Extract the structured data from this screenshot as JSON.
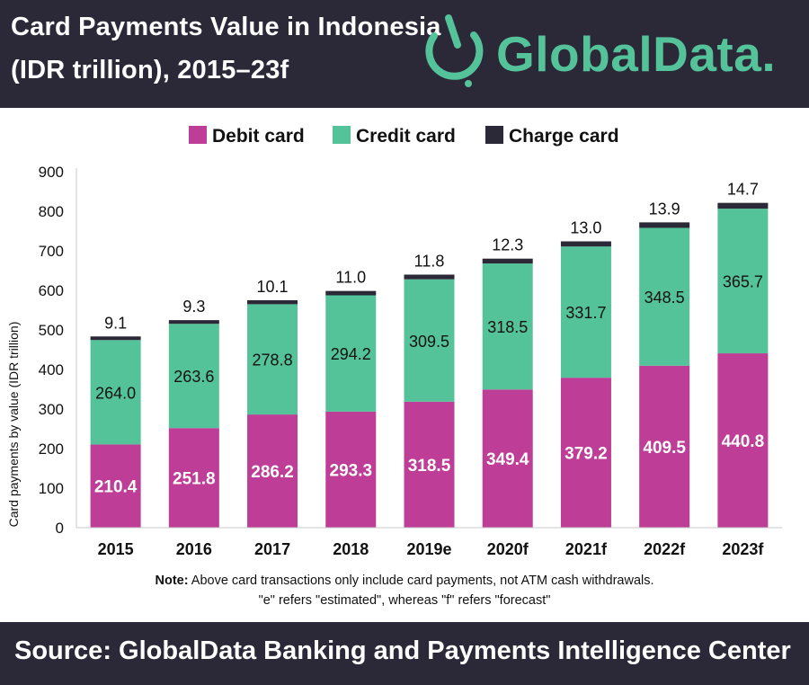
{
  "header": {
    "title_line1": "Card Payments Value in Indonesia",
    "title_line2": "(IDR trillion), 2015–23f",
    "logo_text": "GlobalData."
  },
  "chart_data": {
    "type": "bar",
    "stacked": true,
    "categories": [
      "2015",
      "2016",
      "2017",
      "2018",
      "2019e",
      "2020f",
      "2021f",
      "2022f",
      "2023f"
    ],
    "series": [
      {
        "name": "Debit card",
        "color": "#be3d97",
        "values": [
          210.4,
          251.8,
          286.2,
          293.3,
          318.5,
          349.4,
          379.2,
          409.5,
          440.8
        ]
      },
      {
        "name": "Credit card",
        "color": "#55c39a",
        "values": [
          264.0,
          263.6,
          278.8,
          294.2,
          309.5,
          318.5,
          331.7,
          348.5,
          365.7
        ]
      },
      {
        "name": "Charge card",
        "color": "#2b2838",
        "values": [
          9.1,
          9.3,
          10.1,
          11.0,
          11.8,
          12.3,
          13.0,
          13.9,
          14.7
        ]
      }
    ],
    "value_labels": {
      "Debit card": [
        "210.4",
        "251.8",
        "286.2",
        "293.3",
        "318.5",
        "349.4",
        "379.2",
        "409.5",
        "440.8"
      ],
      "Credit card": [
        "264.0",
        "263.6",
        "278.8",
        "294.2",
        "309.5",
        "318.5",
        "331.7",
        "348.5",
        "365.7"
      ],
      "Charge card": [
        "9.1",
        "9.3",
        "10.1",
        "11.0",
        "11.8",
        "12.3",
        "13.0",
        "13.9",
        "14.7"
      ]
    },
    "ylabel": "Card payments by value (IDR trillion)",
    "xlabel": "",
    "ylim": [
      0,
      900
    ],
    "yticks": [
      "0",
      "100",
      "200",
      "300",
      "400",
      "500",
      "600",
      "700",
      "800",
      "900"
    ],
    "legend_position": "top",
    "grid": false
  },
  "note": {
    "label": "Note:",
    "line1": " Above card transactions only include card payments, not ATM cash withdrawals.",
    "line2": "\"e\" refers \"estimated\", whereas \"f\" refers \"forecast\""
  },
  "footer": {
    "source": "Source:  GlobalData Banking and Payments Intelligence Center"
  },
  "colors": {
    "header_bg": "#2b2838",
    "accent_green": "#55c39a",
    "accent_magenta": "#be3d97"
  }
}
